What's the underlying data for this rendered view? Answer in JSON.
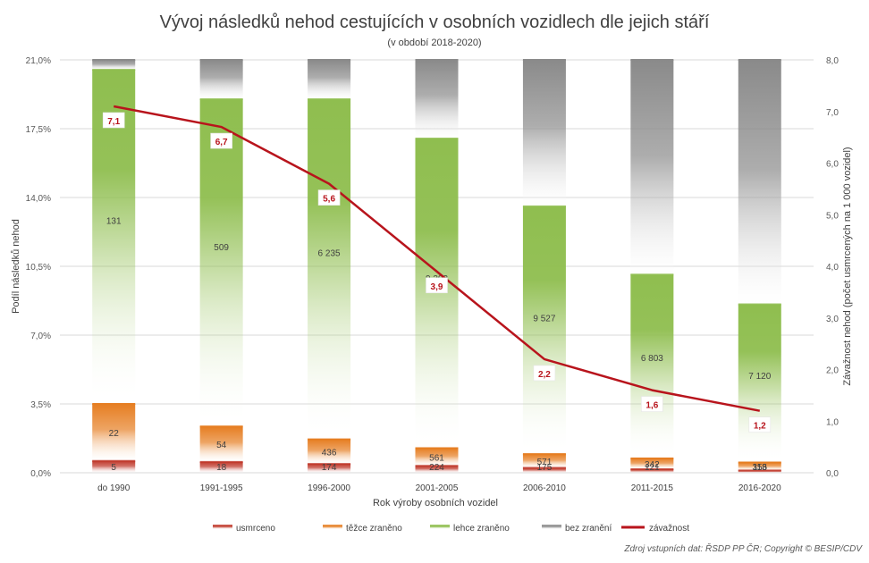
{
  "chart_data": {
    "type": "bar",
    "title": "Vývoj následků nehod cestujících v osobních vozidlech dle jejich stáří",
    "subtitle": "(v období 2018-2020)",
    "xlabel": "Rok výroby osobních vozidel",
    "ylabel": "Podíl následků nehod",
    "y2label": "Závažnost nehod (počet usmrcených na 1 000 vozidel)",
    "ylim": [
      0,
      21
    ],
    "y2lim": [
      0,
      8
    ],
    "y_ticks": [
      "0,0%",
      "3,5%",
      "7,0%",
      "10,5%",
      "14,0%",
      "17,5%",
      "21,0%"
    ],
    "y2_ticks": [
      "0,0",
      "1,0",
      "2,0",
      "3,0",
      "4,0",
      "5,0",
      "6,0",
      "7,0",
      "8,0"
    ],
    "categories": [
      "do 1990",
      "1991-1995",
      "1996-2000",
      "2001-2005",
      "2006-2010",
      "2011-2015",
      "2016-2020"
    ],
    "series": [
      {
        "name": "usmrceno",
        "color": "#c0392b",
        "values": [
          0.6,
          0.55,
          0.45,
          0.35,
          0.25,
          0.18,
          0.12
        ],
        "labels": [
          "5",
          "18",
          "174",
          "224",
          "175",
          "121",
          "113"
        ]
      },
      {
        "name": "těžce zraněno",
        "color": "#e67e22",
        "values": [
          2.9,
          1.8,
          1.25,
          0.9,
          0.7,
          0.55,
          0.4
        ],
        "labels": [
          "22",
          "54",
          "436",
          "561",
          "571",
          "342",
          "356"
        ]
      },
      {
        "name": "lehce zraněno",
        "color": "#8fbe4f",
        "values": [
          17.0,
          16.65,
          17.3,
          15.75,
          12.6,
          9.35,
          8.05
        ],
        "labels": [
          "131",
          "509",
          "6 235",
          "9 303",
          "9 527",
          "6 803",
          "7 120"
        ]
      },
      {
        "name": "bez zranění",
        "color": "#8a8a8a",
        "values": [
          0.5,
          2.0,
          2.0,
          4.0,
          7.45,
          10.92,
          12.43
        ],
        "labels": [
          "",
          "",
          "",
          "",
          "",
          "",
          ""
        ]
      }
    ],
    "line": {
      "name": "závažnost",
      "color": "#b8141c",
      "values": [
        7.1,
        6.7,
        5.6,
        3.9,
        2.2,
        1.6,
        1.2
      ],
      "labels": [
        "7,1",
        "6,7",
        "5,6",
        "3,9",
        "2,2",
        "1,6",
        "1,2"
      ]
    },
    "legend_position": "bottom",
    "gridlines": true
  },
  "source_note": "Zdroj vstupních dat: ŘSDP PP ČR; Copyright © BESIP/CDV"
}
